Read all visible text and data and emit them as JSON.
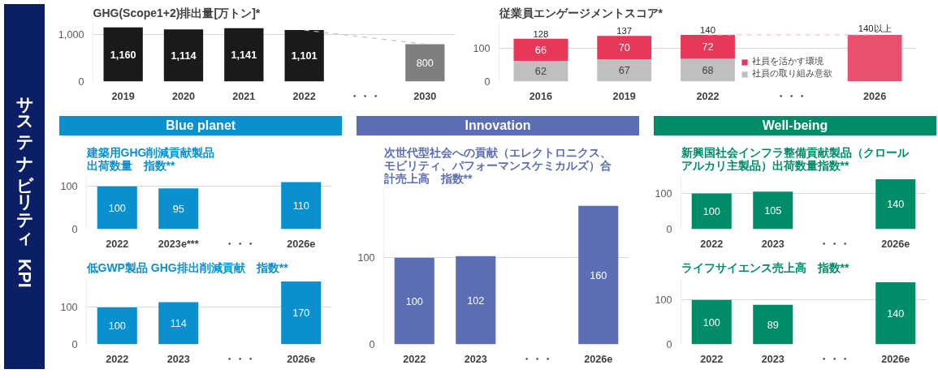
{
  "chart_data": [
    {
      "type": "bar",
      "title": "GHG(Scope1+2)排出量[万トン]*",
      "annotations": [
        "サステナビリティ　KPI"
      ],
      "categories": [
        "2019",
        "2020",
        "2021",
        "2022",
        "・・・",
        "2030"
      ],
      "series": [
        {
          "colors": [
            "#1a1a1a",
            "#1a1a1a",
            "#1a1a1a",
            "#1a1a1a",
            "#1a1a1a",
            "#7f7f7f"
          ],
          "values": [
            1160,
            1114,
            1141,
            1101,
            null,
            800
          ],
          "value_labels": [
            "1,160",
            "1,114",
            "1,141",
            "1,101",
            null,
            "800"
          ]
        },
        {
          "type": "line",
          "color": "#c4c4c4",
          "line_style": "dashed",
          "values": [
            null,
            null,
            null,
            1101,
            null,
            800
          ]
        }
      ],
      "ylim": [
        0,
        1250
      ],
      "yticks": [
        0,
        {
          "value": 1000,
          "label": "1,000"
        }
      ],
      "grid": "y"
    },
    {
      "type": "bar",
      "title": "従業員エンゲージメントスコア*",
      "categories": [
        "2016",
        "2019",
        "2022",
        "・・・",
        "2026"
      ],
      "stacked": true,
      "series": [
        {
          "name": "社員の取り組み意欲",
          "color": "#bfbfbf",
          "values": [
            62,
            67,
            68,
            null,
            null
          ],
          "value_labels": [
            "62",
            "67",
            "68",
            null,
            null
          ]
        },
        {
          "name": "社員を活かす環境",
          "color": "#e8385a",
          "values": [
            66,
            70,
            72,
            null,
            null
          ],
          "value_labels": [
            "66",
            "70",
            "72",
            null,
            null
          ]
        },
        {
          "color": "#e8506e",
          "values": [
            null,
            null,
            null,
            null,
            140
          ]
        },
        {
          "type": "line",
          "color": "#f9c0cc",
          "line_style": "dashed",
          "values": [
            null,
            null,
            140,
            null,
            140
          ]
        }
      ],
      "totals": [
        "128",
        "137",
        "140",
        null,
        "140以上"
      ],
      "ylim": [
        0,
        175
      ],
      "yticks": [
        0,
        100
      ],
      "grid": "y",
      "legend": "bottom right"
    },
    {
      "type": "bar",
      "subtitle": "Blue planet",
      "title": "建築用GHG削減貢献製品出荷数量　指数**",
      "categories": [
        "2022",
        "2023e***",
        "・・・",
        "2026e"
      ],
      "series": [
        {
          "type": "bar",
          "color": "#0a8fcf",
          "values": [
            100,
            95,
            null,
            110
          ]
        }
      ],
      "ylim": [
        0,
        125
      ],
      "yticks": [
        0,
        100
      ],
      "grid": "y",
      "data_labels": true
    },
    {
      "type": "bar",
      "title": "低GWP製品 GHG排出削減貢献　指数**",
      "categories": [
        "2022",
        "2023",
        "・・・",
        "2026e"
      ],
      "series": [
        {
          "type": "bar",
          "color": "#0a8fcf",
          "values": [
            100,
            114,
            null,
            170
          ]
        }
      ],
      "ylim": [
        0,
        180
      ],
      "yticks": [
        0,
        100
      ],
      "grid": "y",
      "data_labels": true
    },
    {
      "type": "bar",
      "subtitle": "Innovation",
      "title": "次世代型社会への貢献（エレクトロニクス、モビリティ、パフォーマンスケミカルズ）合計売上高　指数**",
      "categories": [
        "2022",
        "2023",
        "・・・",
        "2026e"
      ],
      "series": [
        {
          "type": "bar",
          "color": "#5b6db3",
          "values": [
            100,
            102,
            null,
            160
          ]
        }
      ],
      "ylim": [
        0,
        180
      ],
      "yticks": [
        0,
        100
      ],
      "grid": "y",
      "data_labels": true
    },
    {
      "type": "bar",
      "subtitle": "Well-being",
      "title": "新興国社会インフラ整備貢献製品（クロールアルカリ主製品）出荷数量指数**",
      "categories": [
        "2022",
        "2023",
        "・・・",
        "2026e"
      ],
      "series": [
        {
          "type": "bar",
          "color": "#008c69",
          "values": [
            100,
            105,
            null,
            140
          ]
        }
      ],
      "ylim": [
        0,
        150
      ],
      "yticks": [
        0,
        100
      ],
      "grid": "y",
      "data_labels": true
    },
    {
      "type": "bar",
      "title": "ライフサイエンス売上高　指数**",
      "categories": [
        "2022",
        "2023",
        "・・・",
        "2026e"
      ],
      "series": [
        {
          "type": "bar",
          "color": "#008c69",
          "values": [
            100,
            89,
            null,
            140
          ]
        }
      ],
      "ylim": [
        0,
        150
      ],
      "yticks": [
        0,
        100
      ],
      "grid": "y",
      "data_labels": true
    }
  ]
}
